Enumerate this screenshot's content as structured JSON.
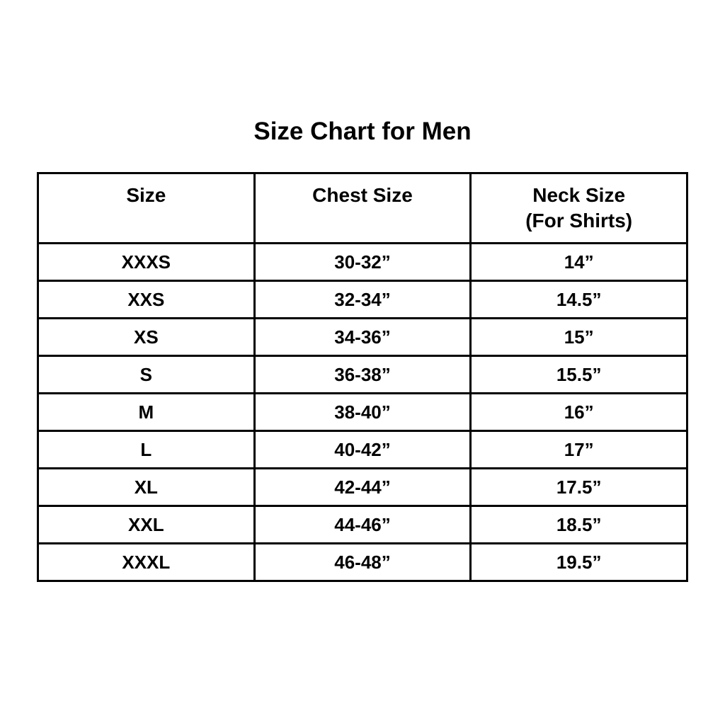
{
  "title": "Size Chart for Men",
  "chart_data": {
    "type": "table",
    "title": "Size Chart for Men",
    "headers": {
      "col1": "Size",
      "col2": "Chest Size",
      "col3_line1": "Neck Size",
      "col3_line2": "(For Shirts)"
    },
    "rows": [
      {
        "size": "XXXS",
        "chest": "30-32”",
        "neck": "14”"
      },
      {
        "size": "XXS",
        "chest": "32-34”",
        "neck": "14.5”"
      },
      {
        "size": "XS",
        "chest": "34-36”",
        "neck": "15”"
      },
      {
        "size": "S",
        "chest": "36-38”",
        "neck": "15.5”"
      },
      {
        "size": "M",
        "chest": "38-40”",
        "neck": "16”"
      },
      {
        "size": "L",
        "chest": "40-42”",
        "neck": "17”"
      },
      {
        "size": "XL",
        "chest": "42-44”",
        "neck": "17.5”"
      },
      {
        "size": "XXL",
        "chest": "44-46”",
        "neck": "18.5”"
      },
      {
        "size": "XXXL",
        "chest": "46-48”",
        "neck": "19.5”"
      }
    ],
    "layout": {
      "background_color": "#ffffff",
      "border_color": "#000000",
      "text_color": "#000000",
      "columns_count": 3
    }
  }
}
